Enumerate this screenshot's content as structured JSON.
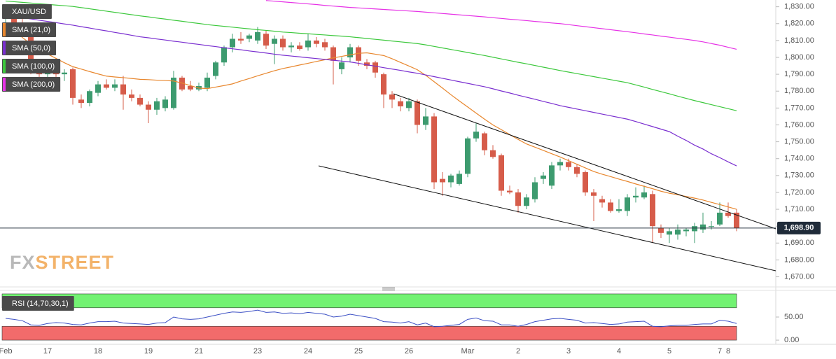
{
  "chart_data": [
    {
      "type": "candlestick",
      "name": "XAU/USD",
      "categories": [
        "Feb",
        null,
        null,
        null,
        null,
        "17",
        null,
        null,
        null,
        null,
        null,
        "18",
        null,
        null,
        null,
        null,
        null,
        "19",
        null,
        null,
        null,
        null,
        null,
        "21",
        null,
        null,
        null,
        null,
        null,
        null,
        "23",
        null,
        null,
        null,
        null,
        null,
        "24",
        null,
        null,
        null,
        null,
        null,
        "25",
        null,
        null,
        null,
        null,
        null,
        "26",
        null,
        null,
        null,
        null,
        null,
        null,
        "Mar",
        null,
        null,
        null,
        null,
        null,
        "2",
        null,
        null,
        null,
        null,
        null,
        "3",
        null,
        null,
        null,
        null,
        null,
        "4",
        null,
        null,
        null,
        null,
        null,
        "5",
        null,
        null,
        null,
        null,
        null,
        "7",
        "8",
        null
      ],
      "open": [
        1824,
        1826,
        1820,
        1818,
        1792,
        1790,
        1791,
        1790,
        1793,
        1775,
        1773,
        1779,
        1784,
        1782,
        1784,
        1778,
        1776,
        1772,
        1769,
        1770,
        1770,
        1788,
        1783,
        1781,
        1782,
        1789,
        1797,
        1806,
        1811,
        1811,
        1810,
        1814,
        1808,
        1811,
        1806,
        1807,
        1806,
        1810,
        1809,
        1806,
        1793,
        1800,
        1806,
        1797,
        1797,
        1790,
        1778,
        1774,
        1770,
        1774,
        1760,
        1765,
        1728,
        1726,
        1725,
        1731,
        1752,
        1755,
        1745,
        1742,
        1721,
        1720,
        1712,
        1716,
        1728,
        1724,
        1736,
        1738,
        1735,
        1732,
        1720,
        1716,
        1714,
        1709,
        1709,
        1717,
        1717,
        1719,
        1699,
        1695,
        1695,
        1697,
        1697,
        1698,
        1700,
        1701,
        1708,
        1708
      ],
      "high": [
        1828,
        1828,
        1824,
        1820,
        1796,
        1794,
        1795,
        1793,
        1794,
        1778,
        1781,
        1786,
        1787,
        1787,
        1789,
        1781,
        1778,
        1774,
        1776,
        1777,
        1792,
        1789,
        1786,
        1785,
        1791,
        1798,
        1807,
        1814,
        1815,
        1814,
        1818,
        1816,
        1813,
        1813,
        1809,
        1809,
        1814,
        1812,
        1811,
        1807,
        1800,
        1808,
        1807,
        1799,
        1798,
        1791,
        1780,
        1776,
        1776,
        1775,
        1770,
        1767,
        1732,
        1731,
        1733,
        1753,
        1761,
        1756,
        1748,
        1743,
        1724,
        1722,
        1719,
        1729,
        1732,
        1738,
        1740,
        1740,
        1737,
        1733,
        1722,
        1718,
        1716,
        1716,
        1719,
        1723,
        1724,
        1721,
        1701,
        1699,
        1701,
        1699,
        1702,
        1708,
        1703,
        1714,
        1714,
        1710
      ],
      "low": [
        1820,
        1818,
        1812,
        1790,
        1788,
        1787,
        1788,
        1786,
        1772,
        1770,
        1771,
        1777,
        1781,
        1780,
        1769,
        1774,
        1771,
        1761,
        1766,
        1768,
        1769,
        1780,
        1780,
        1780,
        1780,
        1787,
        1795,
        1803,
        1808,
        1809,
        1808,
        1805,
        1796,
        1804,
        1803,
        1804,
        1804,
        1806,
        1804,
        1784,
        1790,
        1797,
        1795,
        1793,
        1788,
        1770,
        1770,
        1768,
        1768,
        1755,
        1757,
        1722,
        1718,
        1723,
        1724,
        1729,
        1750,
        1742,
        1740,
        1718,
        1719,
        1708,
        1710,
        1714,
        1725,
        1722,
        1733,
        1733,
        1729,
        1718,
        1703,
        1711,
        1708,
        1708,
        1706,
        1714,
        1716,
        1690,
        1693,
        1690,
        1692,
        1694,
        1690,
        1696,
        1698,
        1700,
        1705,
        1697
      ],
      "close": [
        1826,
        1820,
        1818,
        1792,
        1790,
        1791,
        1790,
        1791,
        1776,
        1773,
        1780,
        1784,
        1782,
        1784,
        1778,
        1776,
        1772,
        1769,
        1774,
        1775,
        1788,
        1781,
        1781,
        1783,
        1788,
        1797,
        1806,
        1811,
        1810,
        1813,
        1815,
        1807,
        1811,
        1806,
        1807,
        1805,
        1810,
        1808,
        1806,
        1798,
        1797,
        1806,
        1798,
        1795,
        1791,
        1778,
        1775,
        1771,
        1774,
        1760,
        1765,
        1726,
        1726,
        1730,
        1731,
        1752,
        1756,
        1745,
        1741,
        1721,
        1720,
        1712,
        1717,
        1726,
        1730,
        1736,
        1738,
        1735,
        1731,
        1720,
        1718,
        1714,
        1709,
        1710,
        1717,
        1718,
        1720,
        1700,
        1696,
        1697,
        1698,
        1698,
        1700,
        1701,
        1700,
        1708,
        1706,
        1698.9
      ],
      "up_color": "#3d9b6f",
      "down_color": "#d65c4a",
      "series": [
        {
          "name": "SMA (21,0)",
          "color": "#e8872e",
          "values": [
            1819.4,
            1815.6,
            1811.8,
            1807.9,
            1804.7,
            1802.0,
            1799.4,
            1796.8,
            1794.5,
            1793.1,
            1791.6,
            1790.2,
            1788.9,
            1788.4,
            1788.0,
            1787.5,
            1787.0,
            1786.8,
            1786.5,
            1786.3,
            1786.0,
            1784.8,
            1783.3,
            1781.8,
            1781.5,
            1782.4,
            1783.3,
            1784.3,
            1786.0,
            1787.5,
            1789.1,
            1790.6,
            1792.1,
            1793.4,
            1794.4,
            1795.5,
            1796.5,
            1797.6,
            1798.6,
            1799.7,
            1800.6,
            1801.5,
            1802.4,
            1802.7,
            1801.9,
            1801.1,
            1799.2,
            1797.0,
            1794.9,
            1792.7,
            1789.4,
            1785.6,
            1781.8,
            1777.9,
            1774.2,
            1770.6,
            1767.0,
            1763.4,
            1760.0,
            1757.2,
            1754.3,
            1751.4,
            1748.7,
            1746.8,
            1744.9,
            1742.9,
            1741.0,
            1738.8,
            1736.7,
            1734.5,
            1732.4,
            1730.8,
            1729.4,
            1727.9,
            1726.5,
            1725.0,
            1723.6,
            1722.2,
            1720.7,
            1719.5,
            1718.6,
            1717.6,
            1716.6,
            1715.5,
            1714.1,
            1712.8,
            1711.4,
            1710.0
          ]
        },
        {
          "name": "SMA (50,0)",
          "color": "#7a2fd0",
          "values": [
            1825.0,
            1824.3,
            1823.5,
            1822.8,
            1822.0,
            1821.3,
            1820.6,
            1819.8,
            1819.1,
            1818.2,
            1817.4,
            1816.5,
            1815.7,
            1814.8,
            1814.0,
            1813.1,
            1812.2,
            1811.6,
            1810.9,
            1810.3,
            1809.6,
            1809.0,
            1808.3,
            1807.7,
            1807.0,
            1806.4,
            1805.7,
            1805.1,
            1804.5,
            1803.8,
            1803.2,
            1802.6,
            1801.9,
            1801.3,
            1800.8,
            1800.3,
            1799.8,
            1799.3,
            1798.8,
            1798.3,
            1797.8,
            1797.3,
            1796.5,
            1795.6,
            1794.8,
            1793.9,
            1793.1,
            1792.3,
            1791.4,
            1790.6,
            1789.6,
            1788.6,
            1787.6,
            1786.6,
            1785.6,
            1784.6,
            1783.6,
            1782.6,
            1781.4,
            1780.1,
            1778.9,
            1777.6,
            1776.4,
            1775.2,
            1773.9,
            1772.7,
            1771.4,
            1770.4,
            1769.4,
            1768.4,
            1767.4,
            1766.4,
            1765.4,
            1764.4,
            1763.4,
            1762.0,
            1760.5,
            1759.0,
            1757.5,
            1756.0,
            1753.3,
            1750.8,
            1748.0,
            1745.7,
            1742.9,
            1740.6,
            1738.1,
            1735.7
          ]
        },
        {
          "name": "SMA (100,0)",
          "color": "#3cc83c",
          "values": [
            1833.4,
            1833.0,
            1832.6,
            1832.2,
            1831.8,
            1831.4,
            1831.0,
            1830.6,
            1830.2,
            1829.5,
            1828.8,
            1828.1,
            1827.4,
            1826.7,
            1826.0,
            1825.3,
            1824.6,
            1824.0,
            1823.3,
            1822.7,
            1822.0,
            1821.4,
            1820.7,
            1820.1,
            1819.4,
            1818.9,
            1818.4,
            1817.9,
            1817.4,
            1816.9,
            1816.4,
            1816.0,
            1815.5,
            1815.0,
            1814.7,
            1814.3,
            1814.0,
            1813.6,
            1813.3,
            1812.9,
            1812.6,
            1812.2,
            1811.7,
            1811.2,
            1810.7,
            1810.2,
            1809.7,
            1809.2,
            1808.7,
            1808.2,
            1807.4,
            1806.5,
            1805.6,
            1804.7,
            1803.8,
            1802.9,
            1802.0,
            1801.1,
            1800.1,
            1799.1,
            1798.1,
            1797.1,
            1796.2,
            1795.2,
            1794.2,
            1793.2,
            1792.2,
            1791.3,
            1790.4,
            1789.5,
            1788.6,
            1787.7,
            1786.8,
            1785.9,
            1785.0,
            1783.7,
            1782.4,
            1781.0,
            1779.7,
            1778.4,
            1777.0,
            1775.7,
            1774.4,
            1773.2,
            1772.0,
            1770.8,
            1769.6,
            1768.4
          ]
        },
        {
          "name": "SMA (200,0)",
          "color": "#e632e6",
          "values": [
            null,
            null,
            null,
            null,
            null,
            null,
            null,
            null,
            null,
            null,
            null,
            null,
            null,
            null,
            null,
            null,
            null,
            null,
            null,
            null,
            null,
            null,
            null,
            null,
            null,
            null,
            null,
            null,
            null,
            null,
            null,
            1833.7,
            1833.3,
            1832.9,
            1832.5,
            1832.1,
            1831.7,
            1831.3,
            1830.8,
            1830.4,
            1830.0,
            1829.6,
            1829.3,
            1829.0,
            1828.7,
            1828.4,
            1828.1,
            1827.8,
            1827.5,
            1827.2,
            1826.8,
            1826.4,
            1826.0,
            1825.6,
            1825.2,
            1824.8,
            1824.4,
            1824.0,
            1823.5,
            1823.1,
            1822.6,
            1822.2,
            1821.8,
            1821.3,
            1820.9,
            1820.4,
            1820.0,
            1819.4,
            1818.8,
            1818.2,
            1817.6,
            1817.0,
            1816.4,
            1815.8,
            1815.2,
            1814.6,
            1813.9,
            1813.3,
            1812.6,
            1812.0,
            1811.3,
            1810.7,
            1810.0,
            1809.2,
            1808.2,
            1807.2,
            1806.0,
            1804.8
          ]
        }
      ],
      "ylim": [
        1664,
        1834
      ],
      "yticks": [
        {
          "value": 1830,
          "label": "1,830.00"
        },
        {
          "value": 1820,
          "label": "1,820.00"
        },
        {
          "value": 1810,
          "label": "1,810.00"
        },
        {
          "value": 1800,
          "label": "1,800.00"
        },
        {
          "value": 1790,
          "label": "1,790.00"
        },
        {
          "value": 1780,
          "label": "1,780.00"
        },
        {
          "value": 1770,
          "label": "1,770.00"
        },
        {
          "value": 1760,
          "label": "1,760.00"
        },
        {
          "value": 1750,
          "label": "1,750.00"
        },
        {
          "value": 1740,
          "label": "1,740.00"
        },
        {
          "value": 1730,
          "label": "1,730.00"
        },
        {
          "value": 1720,
          "label": "1,720.00"
        },
        {
          "value": 1710,
          "label": "1,710.00"
        },
        {
          "value": 1700,
          "label": "1,700.00"
        },
        {
          "value": 1690,
          "label": "1,690.00"
        },
        {
          "value": 1680,
          "label": "1,680.00"
        },
        {
          "value": 1670,
          "label": "1,670.00"
        }
      ],
      "last_price": {
        "value": 1698.9,
        "label": "1,698.90"
      },
      "grid": false,
      "legend": "top-left",
      "watermark": {
        "prefix": "FX",
        "suffix": "STREET"
      }
    },
    {
      "type": "line",
      "series": [
        {
          "name": "RSI (14,70,30,1)",
          "color": "#3b4fc4",
          "values": [
            47,
            45,
            42,
            33,
            32,
            36,
            38,
            37,
            34,
            33,
            37,
            40,
            40,
            41,
            37,
            36,
            35,
            34,
            37,
            38,
            50,
            46,
            45,
            46,
            50,
            54,
            58,
            61,
            60,
            62,
            65,
            60,
            61,
            58,
            59,
            57,
            60,
            58,
            56,
            50,
            52,
            56,
            53,
            50,
            47,
            40,
            39,
            37,
            40,
            33,
            37,
            29,
            30,
            32,
            34,
            45,
            48,
            42,
            41,
            33,
            33,
            30,
            34,
            40,
            43,
            46,
            47,
            45,
            43,
            37,
            38,
            36,
            34,
            35,
            39,
            40,
            41,
            30,
            29,
            31,
            32,
            32,
            34,
            35,
            35,
            43,
            41,
            36
          ]
        }
      ],
      "ylim": [
        -9,
        103
      ],
      "yticks": [
        {
          "value": 50,
          "label": "50.00"
        },
        {
          "value": 0,
          "label": "0.00"
        }
      ],
      "bands": [
        {
          "from": 70,
          "to": 100,
          "color": "#72f272"
        },
        {
          "from": 0,
          "to": 30,
          "color": "#f26b6b"
        }
      ]
    }
  ]
}
